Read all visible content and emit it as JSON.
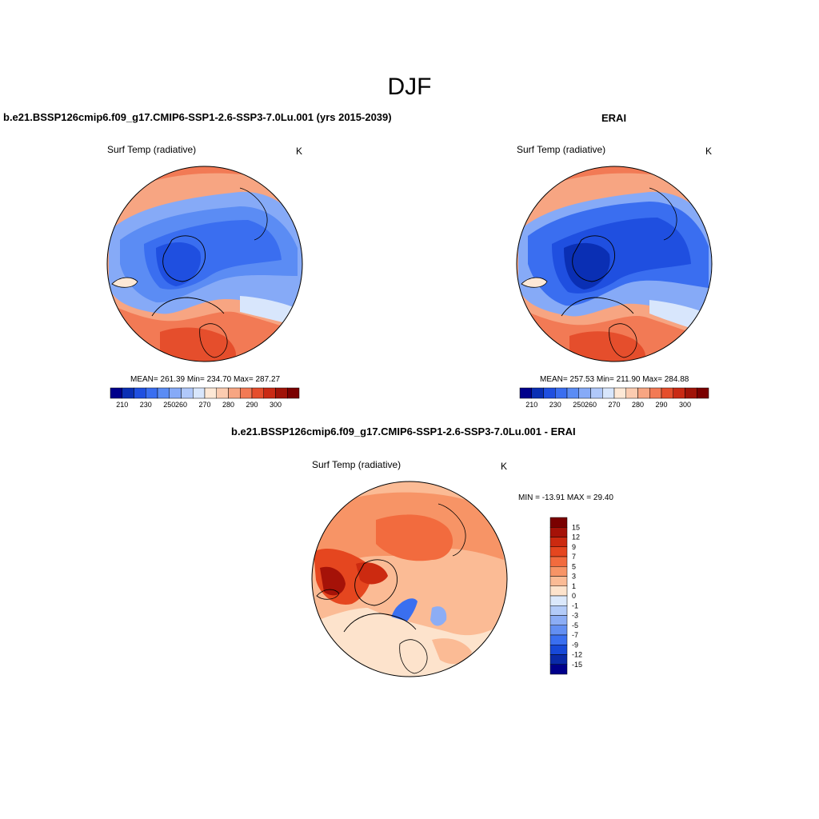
{
  "title": "DJF",
  "panels": [
    {
      "title": "b.e21.BSSP126cmip6.f09_g17.CMIP6-SSP1-2.6-SSP3-7.0Lu.001 (yrs 2015-2039)",
      "variable": "Surf Temp (radiative)",
      "units": "K",
      "stats": "MEAN= 261.39  Min= 234.70  Max= 287.27"
    },
    {
      "title": "ERAI",
      "variable": "Surf Temp (radiative)",
      "units": "K",
      "stats": "MEAN= 257.53  Min= 211.90  Max= 284.88"
    },
    {
      "title": "b.e21.BSSP126cmip6.f09_g17.CMIP6-SSP1-2.6-SSP3-7.0Lu.001 - ERAI",
      "variable": "Surf Temp (radiative)",
      "units": "K",
      "stats": "MIN = -13.91 MAX =  29.40"
    }
  ],
  "abs_colorbar": {
    "labels": [
      "210",
      "230",
      "250",
      "260",
      "270",
      "280",
      "290",
      "300"
    ],
    "colors": [
      "#00008b",
      "#0a2fb4",
      "#1f4fe0",
      "#3a6ef0",
      "#5b8cf4",
      "#86aaf7",
      "#b0c8fa",
      "#d8e6fc",
      "#fde8d6",
      "#fbcbb0",
      "#f7a582",
      "#f27a55",
      "#e54e2c",
      "#c92a14",
      "#a01308",
      "#7a0000"
    ]
  },
  "diff_colorbar": {
    "labels": [
      "15",
      "12",
      "9",
      "7",
      "5",
      "3",
      "1",
      "0",
      "-1",
      "-3",
      "-5",
      "-7",
      "-9",
      "-12",
      "-15"
    ],
    "colors": [
      "#7a0000",
      "#a51208",
      "#cc2a10",
      "#e5461f",
      "#f26b3e",
      "#f79466",
      "#fbbb95",
      "#fde3cc",
      "#dbe8fb",
      "#b3cbf8",
      "#8cadf5",
      "#638ff2",
      "#3a6ff0",
      "#1749d8",
      "#0a2aa8",
      "#00008b"
    ]
  }
}
